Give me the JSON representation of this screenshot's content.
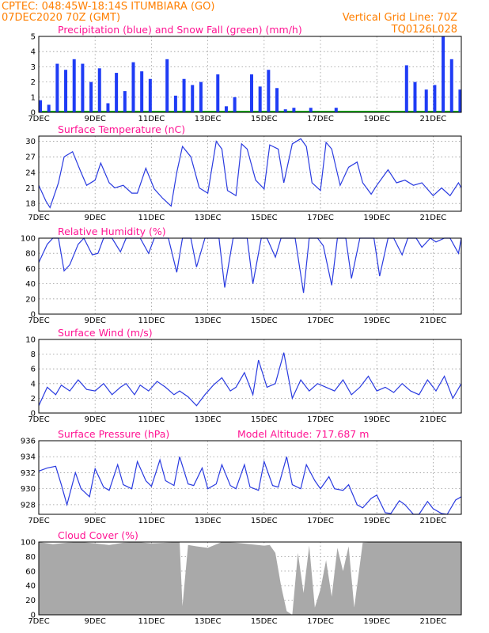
{
  "header": {
    "line1": "CPTEC:   048:45W-18:14S   ITUMBIARA (GO)",
    "line2": "07DEC2020 70Z (GMT)",
    "grid_note": "Vertical Grid Line: 70Z",
    "code": "TQ0126L028"
  },
  "x_ticks": [
    "7DEC",
    "9DEC",
    "11DEC",
    "13DEC",
    "15DEC",
    "17DEC",
    "19DEC",
    "21DEC"
  ],
  "x_range_days": [
    0,
    15
  ],
  "colors": {
    "series": "#2a3be0",
    "precip": "#1f3cf5",
    "snow": "#00b000",
    "cloud": "#a9a9a9",
    "header": "#ff7f00",
    "title": "#ff1493"
  },
  "chart_data": [
    {
      "type": "bar",
      "title": "Precipitation (blue) and Snow Fall (green) (mm/h)",
      "ylim": [
        0,
        5
      ],
      "yticks": [
        "0",
        "1",
        "2",
        "3",
        "4",
        "5"
      ],
      "series": [
        {
          "name": "Precipitation",
          "x": [
            0.0,
            0.3,
            0.6,
            0.9,
            1.2,
            1.5,
            1.8,
            2.1,
            2.4,
            2.7,
            3.0,
            3.3,
            3.6,
            3.9,
            4.5,
            4.8,
            5.1,
            5.4,
            5.7,
            6.3,
            6.6,
            6.9,
            7.5,
            7.8,
            8.1,
            8.4,
            8.7,
            9.0,
            9.6,
            10.5,
            13.0,
            13.3,
            13.7,
            14.0,
            14.3,
            14.6,
            14.9
          ],
          "values": [
            0.8,
            0.5,
            3.2,
            2.8,
            3.5,
            3.2,
            2.0,
            2.9,
            0.6,
            2.6,
            1.4,
            3.3,
            2.7,
            2.2,
            3.5,
            1.1,
            2.2,
            1.8,
            2.0,
            2.5,
            0.4,
            1.0,
            2.5,
            1.7,
            2.8,
            1.6,
            0.2,
            0.3,
            0.3,
            0.3,
            3.1,
            2.0,
            1.5,
            1.8,
            5.0,
            3.5,
            1.5
          ]
        },
        {
          "name": "Snow Fall",
          "x": [],
          "values": []
        }
      ]
    },
    {
      "type": "line",
      "title": "Surface Temperature (nC)",
      "ylim": [
        16.5,
        31
      ],
      "yticks": [
        "18",
        "21",
        "24",
        "27",
        "30"
      ],
      "series": [
        {
          "name": "Temperature",
          "x": [
            0.0,
            0.25,
            0.4,
            0.7,
            0.9,
            1.2,
            1.5,
            1.7,
            2.0,
            2.2,
            2.5,
            2.7,
            3.0,
            3.3,
            3.5,
            3.8,
            4.1,
            4.4,
            4.7,
            4.9,
            5.1,
            5.4,
            5.7,
            6.0,
            6.3,
            6.5,
            6.7,
            7.0,
            7.2,
            7.4,
            7.7,
            8.0,
            8.2,
            8.5,
            8.7,
            9.0,
            9.3,
            9.5,
            9.7,
            10.0,
            10.2,
            10.4,
            10.7,
            11.0,
            11.3,
            11.5,
            11.8,
            12.0,
            12.4,
            12.7,
            13.0,
            13.3,
            13.6,
            14.0,
            14.3,
            14.6,
            14.9,
            15.0
          ],
          "values": [
            21.5,
            18.5,
            17.2,
            22.0,
            27.0,
            28.0,
            24.0,
            21.5,
            22.5,
            25.8,
            22.0,
            21.0,
            21.5,
            20.0,
            20.0,
            24.8,
            20.8,
            19.0,
            17.5,
            24.0,
            29.0,
            27.0,
            21.0,
            20.0,
            30.0,
            28.5,
            20.5,
            19.5,
            29.5,
            28.5,
            22.5,
            20.8,
            29.3,
            28.5,
            22.0,
            29.5,
            30.5,
            29.0,
            22.0,
            20.5,
            29.8,
            28.5,
            21.5,
            25.0,
            26.0,
            22.0,
            19.8,
            21.5,
            24.5,
            22.0,
            22.5,
            21.5,
            22.0,
            19.5,
            21.0,
            19.5,
            22.0,
            21.0
          ]
        }
      ]
    },
    {
      "type": "line",
      "title": "Relative Humidity (%)",
      "ylim": [
        0,
        100
      ],
      "yticks": [
        "0",
        "20",
        "40",
        "60",
        "80",
        "100"
      ],
      "series": [
        {
          "name": "Relative Humidity",
          "x": [
            0.0,
            0.3,
            0.5,
            0.7,
            0.9,
            1.1,
            1.4,
            1.6,
            1.9,
            2.1,
            2.3,
            2.6,
            2.9,
            3.1,
            3.4,
            3.6,
            3.9,
            4.1,
            4.3,
            4.6,
            4.9,
            5.1,
            5.4,
            5.6,
            5.9,
            6.1,
            6.4,
            6.6,
            6.9,
            7.1,
            7.4,
            7.6,
            7.9,
            8.1,
            8.4,
            8.6,
            8.9,
            9.1,
            9.4,
            9.6,
            9.9,
            10.1,
            10.4,
            10.6,
            10.9,
            11.1,
            11.4,
            11.6,
            11.9,
            12.1,
            12.4,
            12.6,
            12.9,
            13.1,
            13.4,
            13.6,
            13.9,
            14.1,
            14.4,
            14.6,
            14.9,
            15.0
          ],
          "values": [
            68,
            92,
            100,
            100,
            57,
            65,
            92,
            100,
            78,
            80,
            100,
            100,
            82,
            100,
            100,
            100,
            80,
            100,
            100,
            100,
            55,
            100,
            100,
            62,
            100,
            100,
            100,
            35,
            100,
            100,
            100,
            40,
            100,
            100,
            75,
            100,
            100,
            100,
            28,
            100,
            100,
            90,
            38,
            100,
            100,
            47,
            100,
            100,
            100,
            50,
            100,
            100,
            78,
            100,
            100,
            88,
            100,
            95,
            100,
            100,
            80,
            100
          ]
        }
      ]
    },
    {
      "type": "line",
      "title": "Surface Wind (m/s)",
      "ylim": [
        0,
        10
      ],
      "yticks": [
        "0",
        "2",
        "4",
        "6",
        "8",
        "10"
      ],
      "series": [
        {
          "name": "Wind speed",
          "x": [
            0.0,
            0.3,
            0.6,
            0.8,
            1.1,
            1.4,
            1.7,
            2.0,
            2.3,
            2.6,
            2.9,
            3.1,
            3.4,
            3.6,
            3.9,
            4.2,
            4.5,
            4.8,
            5.0,
            5.3,
            5.6,
            5.9,
            6.2,
            6.5,
            6.8,
            7.0,
            7.3,
            7.6,
            7.8,
            8.1,
            8.4,
            8.7,
            9.0,
            9.3,
            9.6,
            9.9,
            10.2,
            10.5,
            10.8,
            11.1,
            11.4,
            11.7,
            12.0,
            12.3,
            12.6,
            12.9,
            13.2,
            13.5,
            13.8,
            14.1,
            14.4,
            14.7,
            15.0
          ],
          "values": [
            1.0,
            3.5,
            2.5,
            3.8,
            3.0,
            4.5,
            3.2,
            3.0,
            4.0,
            2.5,
            3.5,
            4.0,
            2.5,
            3.8,
            3.0,
            4.3,
            3.5,
            2.5,
            3.0,
            2.2,
            1.0,
            2.5,
            3.8,
            4.8,
            3.0,
            3.5,
            5.5,
            2.5,
            7.2,
            3.5,
            4.0,
            8.2,
            2.0,
            4.5,
            3.0,
            4.0,
            3.5,
            3.0,
            4.5,
            2.5,
            3.5,
            5.0,
            3.0,
            3.5,
            2.8,
            4.0,
            3.0,
            2.5,
            4.5,
            3.0,
            5.0,
            2.0,
            4.0
          ]
        }
      ]
    },
    {
      "type": "line",
      "title": "Surface Pressure (hPa)",
      "annotation": "Model Altitude: 717.687 m",
      "ylim": [
        926.8,
        936
      ],
      "yticks": [
        "928",
        "930",
        "932",
        "934",
        "936"
      ],
      "series": [
        {
          "name": "Pressure",
          "x": [
            0.0,
            0.3,
            0.6,
            0.8,
            1.0,
            1.3,
            1.5,
            1.8,
            2.0,
            2.3,
            2.5,
            2.8,
            3.0,
            3.3,
            3.5,
            3.8,
            4.0,
            4.3,
            4.5,
            4.8,
            5.0,
            5.3,
            5.5,
            5.8,
            6.0,
            6.3,
            6.5,
            6.8,
            7.0,
            7.3,
            7.5,
            7.8,
            8.0,
            8.3,
            8.5,
            8.8,
            9.0,
            9.3,
            9.5,
            9.8,
            10.0,
            10.3,
            10.5,
            10.8,
            11.0,
            11.3,
            11.5,
            11.8,
            12.0,
            12.3,
            12.5,
            12.8,
            13.0,
            13.3,
            13.5,
            13.8,
            14.0,
            14.3,
            14.5,
            14.8,
            15.0
          ],
          "values": [
            932.2,
            932.6,
            932.8,
            930.5,
            928.0,
            932.0,
            930.0,
            929.0,
            932.5,
            930.2,
            929.8,
            933.0,
            930.5,
            930.0,
            933.4,
            931.0,
            930.3,
            933.6,
            931.0,
            930.4,
            934.0,
            930.6,
            930.4,
            932.6,
            930.0,
            930.6,
            933.0,
            930.4,
            930.0,
            933.0,
            930.2,
            929.8,
            933.4,
            930.4,
            930.2,
            934.0,
            930.5,
            930.0,
            933.0,
            931.0,
            930.0,
            931.5,
            930.0,
            929.8,
            930.5,
            928.0,
            927.6,
            928.8,
            929.2,
            927.0,
            926.9,
            928.5,
            928.0,
            926.8,
            926.8,
            928.4,
            927.5,
            926.9,
            926.8,
            928.6,
            929.0
          ]
        }
      ]
    },
    {
      "type": "area",
      "title": "Cloud Cover (%)",
      "ylim": [
        0,
        100
      ],
      "yticks": [
        "0",
        "20",
        "40",
        "60",
        "80",
        "100"
      ],
      "series": [
        {
          "name": "Cloud Cover",
          "x": [
            0.0,
            0.5,
            1.0,
            1.5,
            2.0,
            2.5,
            3.0,
            3.5,
            4.0,
            4.5,
            5.0,
            5.1,
            5.3,
            5.6,
            6.0,
            6.5,
            7.0,
            7.5,
            8.0,
            8.2,
            8.4,
            8.6,
            8.8,
            9.0,
            9.2,
            9.4,
            9.6,
            9.8,
            10.0,
            10.2,
            10.4,
            10.6,
            10.8,
            11.0,
            11.2,
            11.5,
            12.0,
            12.5,
            13.0,
            13.5,
            14.0,
            14.5,
            15.0
          ],
          "values": [
            100,
            97,
            99,
            100,
            98,
            96,
            99,
            100,
            98,
            99,
            100,
            12,
            96,
            94,
            92,
            100,
            99,
            97,
            95,
            96,
            85,
            40,
            5,
            0,
            85,
            30,
            95,
            10,
            35,
            75,
            25,
            92,
            60,
            94,
            10,
            99,
            100,
            100,
            100,
            100,
            100,
            100,
            100
          ]
        }
      ]
    }
  ]
}
